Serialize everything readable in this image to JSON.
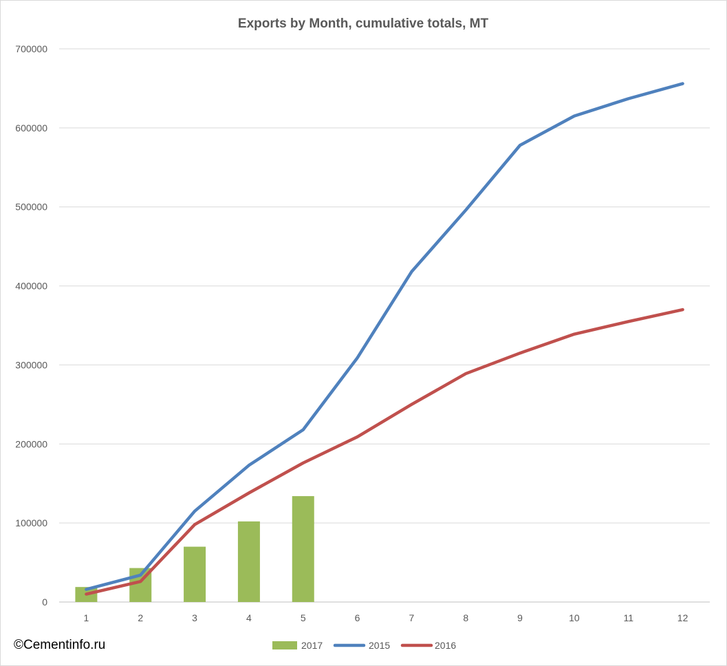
{
  "watermark": "©Cementinfo.ru",
  "chart_data": {
    "type": "bar+line",
    "title": "Exports by Month, cumulative totals, MT",
    "xlabel": "",
    "ylabel": "",
    "categories": [
      "1",
      "2",
      "3",
      "4",
      "5",
      "6",
      "7",
      "8",
      "9",
      "10",
      "11",
      "12"
    ],
    "ylim": [
      0,
      700000
    ],
    "yticks": [
      "0",
      "100000",
      "200000",
      "300000",
      "400000",
      "500000",
      "600000",
      "700000"
    ],
    "grid": true,
    "legend_position": "bottom",
    "series": [
      {
        "name": "2017",
        "type": "bar",
        "color": "#9bbb59",
        "values": [
          19000,
          43000,
          70000,
          102000,
          134000,
          null,
          null,
          null,
          null,
          null,
          null,
          null
        ]
      },
      {
        "name": "2015",
        "type": "line",
        "color": "#4f81bd",
        "values": [
          16000,
          34000,
          115000,
          173000,
          218000,
          309000,
          418000,
          496000,
          578000,
          615000,
          637000,
          656000
        ]
      },
      {
        "name": "2016",
        "type": "line",
        "color": "#c0504d",
        "values": [
          10000,
          26000,
          98000,
          138000,
          176000,
          209000,
          250000,
          289000,
          315000,
          339000,
          355000,
          370000
        ]
      }
    ]
  }
}
